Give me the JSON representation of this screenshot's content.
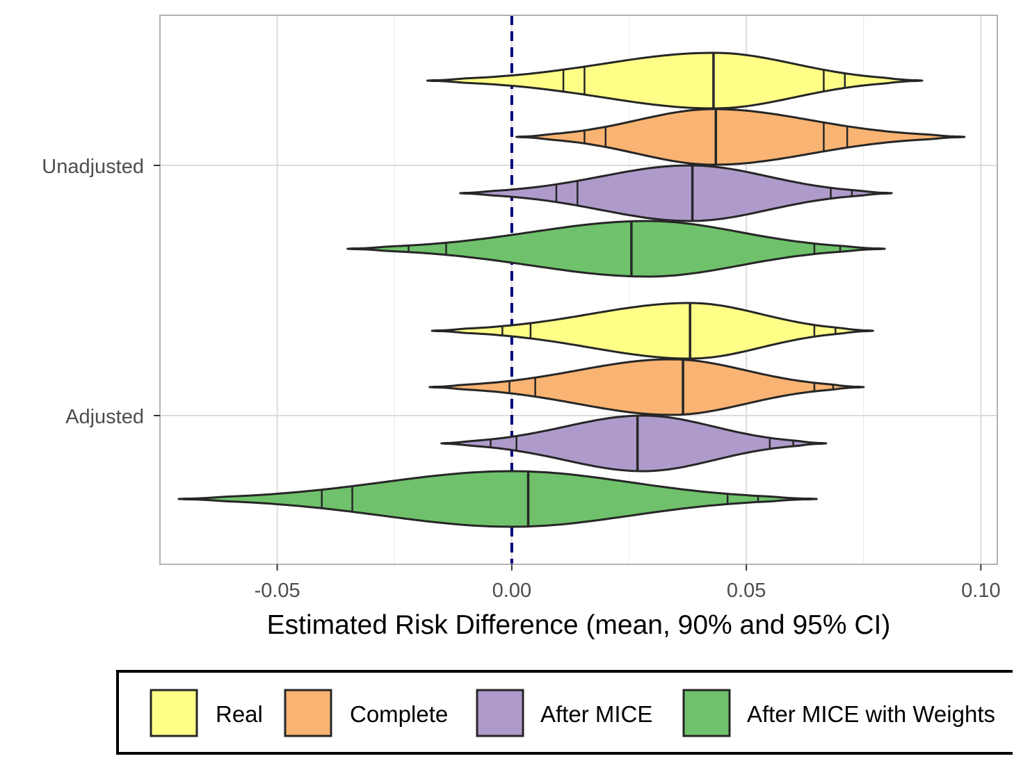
{
  "chart_data": {
    "type": "violin",
    "orientation": "horizontal",
    "xlabel": "Estimated Risk Difference (mean, 90% and 95% CI)",
    "ylabel": "",
    "xlim": [
      -0.075,
      0.1035
    ],
    "x_ticks": [
      -0.05,
      0.0,
      0.05,
      0.1
    ],
    "x_tick_labels": [
      "-0.05",
      "0.00",
      "0.05",
      "0.10"
    ],
    "categories": [
      "Unadjusted",
      "Adjusted"
    ],
    "reference_line": {
      "x": 0.0,
      "style": "dashed",
      "color": "#000080"
    },
    "grid": true,
    "legend_position": "bottom",
    "series": [
      {
        "name": "Real",
        "color": "#FFFF88",
        "data": {
          "Unadjusted": {
            "min": -0.018,
            "max": 0.0875,
            "mean": 0.043,
            "ci90": [
              0.0155,
              0.0665
            ],
            "ci95": [
              0.011,
              0.071
            ],
            "mode": 0.043
          },
          "Adjusted": {
            "min": -0.017,
            "max": 0.077,
            "mean": 0.038,
            "ci90": [
              0.004,
              0.0645
            ],
            "ci95": [
              -0.002,
              0.069
            ],
            "mode": 0.038
          }
        }
      },
      {
        "name": "Complete",
        "color": "#F9B473",
        "data": {
          "Unadjusted": {
            "min": 0.001,
            "max": 0.0965,
            "mean": 0.0435,
            "ci90": [
              0.02,
              0.0665
            ],
            "ci95": [
              0.0155,
              0.0715
            ],
            "mode": 0.043
          },
          "Adjusted": {
            "min": -0.0175,
            "max": 0.075,
            "mean": 0.0365,
            "ci90": [
              0.005,
              0.0645
            ],
            "ci95": [
              -0.0005,
              0.0685
            ],
            "mode": 0.034
          }
        }
      },
      {
        "name": "After MICE",
        "color": "#AE9BCB",
        "data": {
          "Unadjusted": {
            "min": -0.011,
            "max": 0.081,
            "mean": 0.0385,
            "ci90": [
              0.014,
              0.068
            ],
            "ci95": [
              0.0095,
              0.0725
            ],
            "mode": 0.038
          },
          "Adjusted": {
            "min": -0.015,
            "max": 0.067,
            "mean": 0.0268,
            "ci90": [
              0.001,
              0.055
            ],
            "ci95": [
              -0.0045,
              0.06
            ],
            "mode": 0.028
          }
        }
      },
      {
        "name": "After MICE with Weights",
        "color": "#6FC26B",
        "data": {
          "Unadjusted": {
            "min": -0.035,
            "max": 0.0795,
            "mean": 0.0255,
            "ci90": [
              -0.014,
              0.0645
            ],
            "ci95": [
              -0.022,
              0.07
            ],
            "mode": 0.029
          },
          "Adjusted": {
            "min": -0.071,
            "max": 0.065,
            "mean": 0.0035,
            "ci90": [
              -0.034,
              0.046
            ],
            "ci95": [
              -0.0405,
              0.0525
            ],
            "mode": 0.0
          }
        }
      }
    ]
  },
  "legend": {
    "items": [
      {
        "label": "Real",
        "color": "#FFFF88"
      },
      {
        "label": "Complete",
        "color": "#F9B473"
      },
      {
        "label": "After MICE",
        "color": "#AE9BCB"
      },
      {
        "label": "After MICE with Weights",
        "color": "#6FC26B"
      }
    ]
  }
}
